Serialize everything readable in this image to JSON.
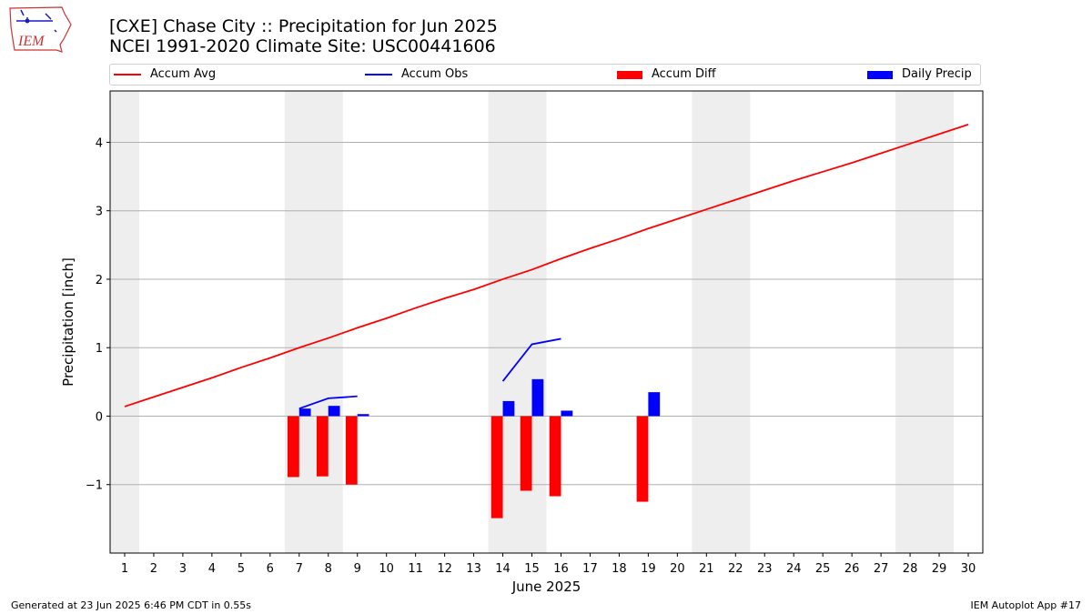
{
  "header": {
    "title_line1": "[CXE] Chase City :: Precipitation for Jun 2025",
    "title_line2": "NCEI 1991-2020 Climate Site: USC00441606"
  },
  "logo": {
    "text": "IEM",
    "icon": "iem-iowa-logo-icon"
  },
  "legend": {
    "items": [
      {
        "label": "Accum Avg",
        "kind": "line",
        "color": "#ff0000"
      },
      {
        "label": "Accum Obs",
        "kind": "line",
        "color": "#0000ff"
      },
      {
        "label": "Accum Diff",
        "kind": "patch",
        "color": "#ff0000"
      },
      {
        "label": "Daily Precip",
        "kind": "patch",
        "color": "#0000ff"
      }
    ]
  },
  "chart_data": {
    "type": "bar",
    "xlabel": "June 2025",
    "ylabel": "Precipitation [inch]",
    "ylim": [
      -2.0,
      4.75
    ],
    "yticks": [
      -1,
      0,
      1,
      2,
      3,
      4
    ],
    "ytick_labels": [
      "−1",
      "0",
      "1",
      "2",
      "3",
      "4"
    ],
    "xticks": [
      1,
      2,
      3,
      4,
      5,
      6,
      7,
      8,
      9,
      10,
      11,
      12,
      13,
      14,
      15,
      16,
      17,
      18,
      19,
      20,
      21,
      22,
      23,
      24,
      25,
      26,
      27,
      28,
      29,
      30
    ],
    "grid": "horizontal",
    "weekend_shading": [
      [
        0.5,
        1.5
      ],
      [
        6.5,
        8.5
      ],
      [
        13.5,
        15.5
      ],
      [
        20.5,
        22.5
      ],
      [
        27.5,
        29.5
      ]
    ],
    "accum_avg": {
      "days": [
        1,
        2,
        3,
        4,
        5,
        6,
        7,
        8,
        9,
        10,
        11,
        12,
        13,
        14,
        15,
        16,
        17,
        18,
        19,
        20,
        21,
        22,
        23,
        24,
        25,
        26,
        27,
        28,
        29,
        30
      ],
      "values": [
        0.14,
        0.28,
        0.42,
        0.56,
        0.71,
        0.85,
        1.0,
        1.14,
        1.29,
        1.43,
        1.58,
        1.72,
        1.85,
        2.0,
        2.14,
        2.3,
        2.45,
        2.59,
        2.74,
        2.88,
        3.02,
        3.16,
        3.3,
        3.44,
        3.57,
        3.7,
        3.84,
        3.98,
        4.12,
        4.26
      ]
    },
    "accum_obs_segments": [
      {
        "days": [
          7,
          8,
          9
        ],
        "values": [
          0.11,
          0.26,
          0.29
        ]
      },
      {
        "days": [
          14,
          15,
          16
        ],
        "values": [
          0.51,
          1.05,
          1.13
        ]
      }
    ],
    "accum_diff": {
      "days": [
        7,
        8,
        9,
        14,
        15,
        16,
        19
      ],
      "values": [
        -0.89,
        -0.88,
        -1.0,
        -1.49,
        -1.09,
        -1.17,
        -1.25
      ]
    },
    "daily_precip": {
      "days": [
        7,
        8,
        9,
        14,
        15,
        16,
        19
      ],
      "values": [
        0.11,
        0.15,
        0.03,
        0.22,
        0.54,
        0.08,
        0.35
      ]
    }
  },
  "footer": {
    "generated": "Generated at 23 Jun 2025 6:46 PM CDT in 0.55s",
    "app": "IEM Autoplot App #17"
  }
}
